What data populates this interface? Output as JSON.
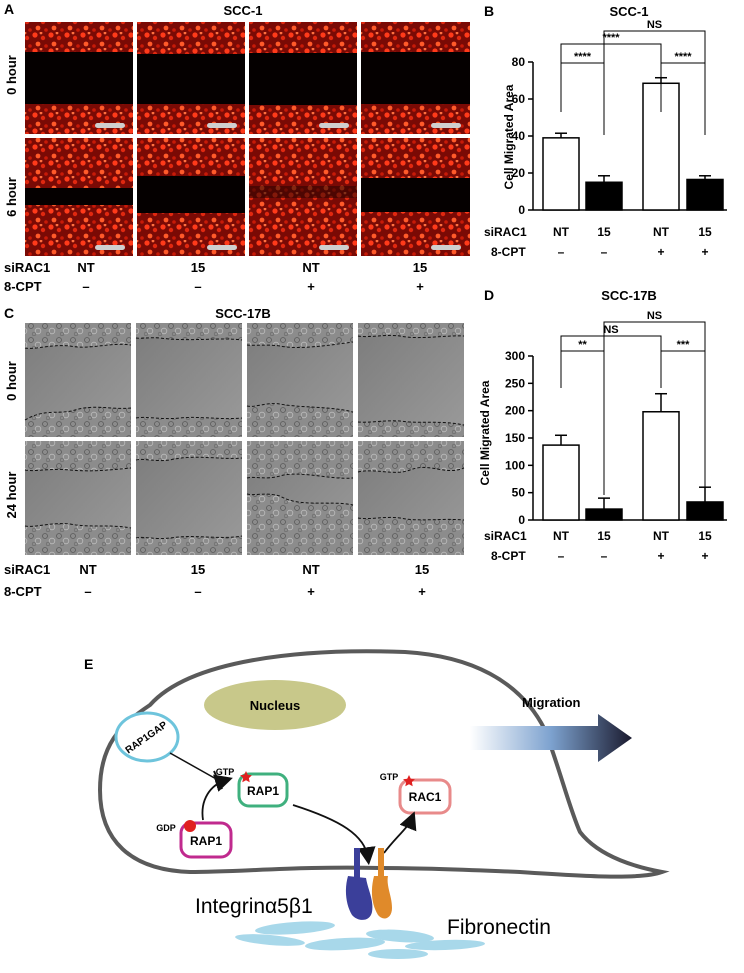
{
  "panel_a": {
    "letter": "A",
    "title": "SCC-1",
    "row_labels": [
      "0 hour",
      "6 hour"
    ],
    "sirac1_label": "siRAC1",
    "cpt_label": "8-CPT",
    "sirac1_values": [
      "NT",
      "15",
      "NT",
      "15"
    ],
    "cpt_values": [
      "–",
      "–",
      "+",
      "+"
    ]
  },
  "panel_c": {
    "letter": "C",
    "title": "SCC-17B",
    "row_labels": [
      "0 hour",
      "24 hour"
    ],
    "sirac1_label": "siRAC1",
    "cpt_label": "8-CPT",
    "sirac1_values": [
      "NT",
      "15",
      "NT",
      "15"
    ],
    "cpt_values": [
      "–",
      "–",
      "+",
      "+"
    ]
  },
  "chart_data": [
    {
      "type": "bar",
      "letter": "B",
      "title": "SCC-1",
      "ylabel": "Cell Migrated Area",
      "ylim": [
        0,
        80
      ],
      "yticks": [
        0,
        20,
        40,
        60,
        80
      ],
      "sirac1_label": "siRAC1",
      "cpt_label": "8-CPT",
      "categories": [
        "NT",
        "15",
        "NT",
        "15"
      ],
      "cpt_values": [
        "–",
        "–",
        "+",
        "+"
      ],
      "values": [
        39,
        15,
        68.5,
        16.5
      ],
      "errors": [
        2.5,
        3.5,
        3,
        2
      ],
      "bar_colors": [
        "#ffffff",
        "#000000",
        "#ffffff",
        "#000000"
      ],
      "significance": [
        {
          "from": 0,
          "to": 1,
          "label": "****"
        },
        {
          "from": 2,
          "to": 3,
          "label": "****"
        },
        {
          "from": 0,
          "to": 2,
          "label": "****"
        },
        {
          "from": 1,
          "to": 3,
          "label": "NS"
        }
      ]
    },
    {
      "type": "bar",
      "letter": "D",
      "title": "SCC-17B",
      "ylabel": "Cell Migrated Area",
      "ylim": [
        0,
        300
      ],
      "yticks": [
        0,
        50,
        100,
        150,
        200,
        250,
        300
      ],
      "sirac1_label": "siRAC1",
      "cpt_label": "8-CPT",
      "categories": [
        "NT",
        "15",
        "NT",
        "15"
      ],
      "cpt_values": [
        "–",
        "–",
        "+",
        "+"
      ],
      "values": [
        137,
        20,
        198,
        33
      ],
      "errors": [
        18,
        20,
        33,
        27
      ],
      "bar_colors": [
        "#ffffff",
        "#000000",
        "#ffffff",
        "#000000"
      ],
      "significance": [
        {
          "from": 0,
          "to": 1,
          "label": "**"
        },
        {
          "from": 2,
          "to": 3,
          "label": "***"
        },
        {
          "from": 0,
          "to": 2,
          "label": "NS"
        },
        {
          "from": 1,
          "to": 3,
          "label": "NS"
        }
      ]
    }
  ],
  "panel_e": {
    "letter": "E",
    "nucleus": "Nucleus",
    "migration": "Migration",
    "rap1gap": "RAP1GAP",
    "rap1_gtp": "RAP1",
    "rap1_gdp": "RAP1",
    "rac1": "RAC1",
    "gtp": "GTP",
    "gdp": "GDP",
    "integrin": "Integrinα5β1",
    "fibronectin": "Fibronectin",
    "colors": {
      "nucleus": "#c8c88a",
      "rap1gap": "#6ec4dc",
      "rap1_gtp": "#3fb07e",
      "rap1_gdp": "#c02a8e",
      "rac1": "#e88a8a",
      "cell": "#5a5a5a",
      "fibronectin": "#a8d8ea",
      "integrin_a": "#3b3f9a",
      "integrin_b": "#e08a2a"
    }
  }
}
